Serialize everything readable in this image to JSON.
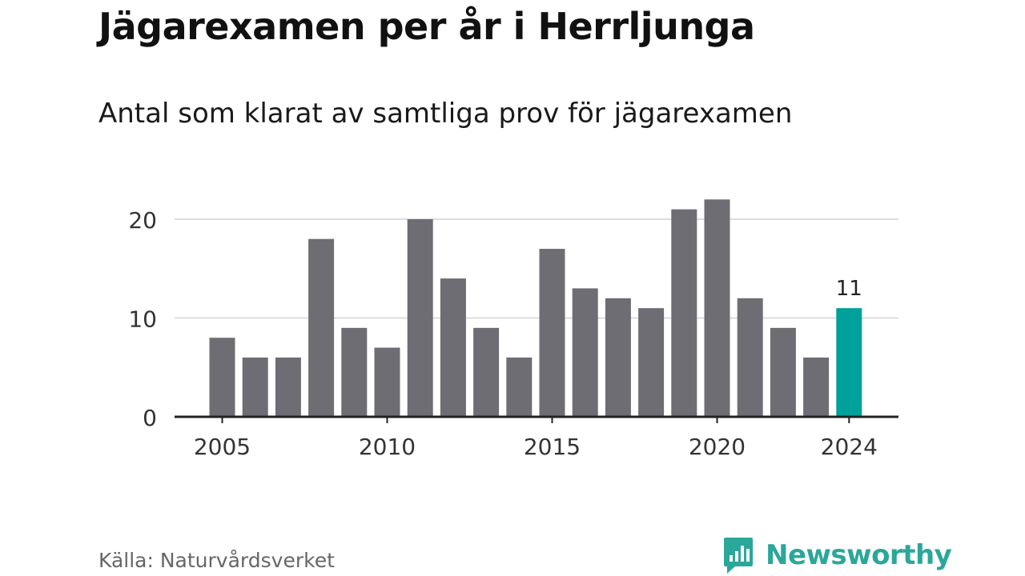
{
  "title": "Jägarexamen per år i Herrljunga",
  "subtitle": "Antal som klarat av samtliga prov för jägarexamen",
  "source": "Källa: Naturvårdsverket",
  "brand": {
    "name": "Newsworthy",
    "icon": "newsworthy-logo-icon",
    "color": "#2ba79a"
  },
  "colors": {
    "bar": "#6e6d73",
    "highlight": "#00a19a",
    "grid": "#dddddd",
    "axis": "#222222"
  },
  "chart_data": {
    "type": "bar",
    "categories": [
      "2005",
      "2006",
      "2007",
      "2008",
      "2009",
      "2010",
      "2011",
      "2012",
      "2013",
      "2014",
      "2015",
      "2016",
      "2017",
      "2018",
      "2019",
      "2020",
      "2021",
      "2022",
      "2023",
      "2024"
    ],
    "values": [
      8,
      6,
      6,
      18,
      9,
      7,
      20,
      14,
      9,
      6,
      17,
      13,
      12,
      11,
      21,
      22,
      12,
      9,
      6,
      11
    ],
    "ylim": [
      0,
      22
    ],
    "yticks": [
      "0",
      "10",
      "20"
    ],
    "xticks": [
      "2005",
      "2010",
      "2015",
      "2020",
      "2024"
    ],
    "highlight": {
      "category": "2024",
      "label": "11"
    },
    "grid": true
  }
}
